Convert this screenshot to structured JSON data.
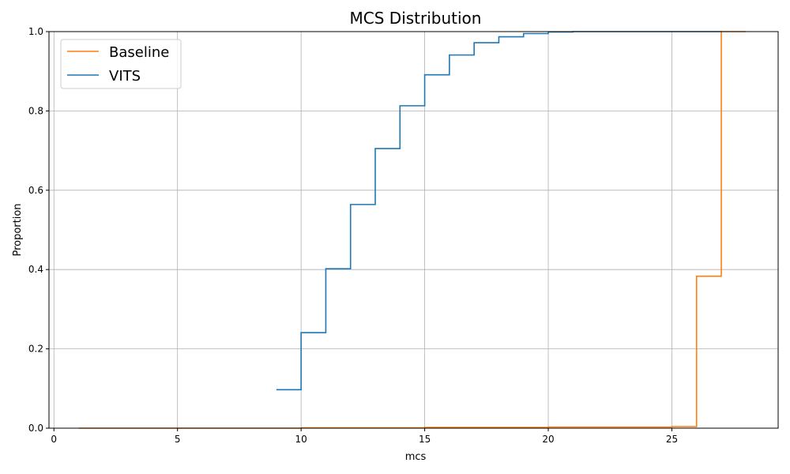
{
  "chart_data": {
    "type": "line",
    "step": "post",
    "title": "MCS Distribution",
    "xlabel": "mcs",
    "ylabel": "Proportion",
    "xlim": [
      -0.2,
      29.3
    ],
    "ylim": [
      0,
      1.0
    ],
    "x_ticks": [
      0,
      5,
      10,
      15,
      20,
      25
    ],
    "y_ticks": [
      0.0,
      0.2,
      0.4,
      0.6,
      0.8,
      1.0
    ],
    "x_tick_labels": [
      "0",
      "5",
      "10",
      "15",
      "20",
      "25"
    ],
    "y_tick_labels": [
      "0.0",
      "0.2",
      "0.4",
      "0.6",
      "0.8",
      "1.0"
    ],
    "grid": true,
    "legend_position": "top-left",
    "series": [
      {
        "name": "Baseline",
        "color": "#ff7f0e",
        "x": [
          1,
          5,
          10,
          15,
          20,
          25,
          26,
          27,
          28
        ],
        "y": [
          0.0,
          0.0,
          0.001,
          0.002,
          0.003,
          0.004,
          0.383,
          1.0,
          1.0
        ]
      },
      {
        "name": "VITS",
        "color": "#1f77b4",
        "x": [
          9,
          10,
          11,
          12,
          13,
          14,
          15,
          16,
          17,
          18,
          19,
          20,
          21,
          27
        ],
        "y": [
          0.097,
          0.241,
          0.402,
          0.564,
          0.705,
          0.813,
          0.891,
          0.941,
          0.972,
          0.987,
          0.995,
          0.999,
          1.0,
          1.0
        ]
      }
    ]
  }
}
